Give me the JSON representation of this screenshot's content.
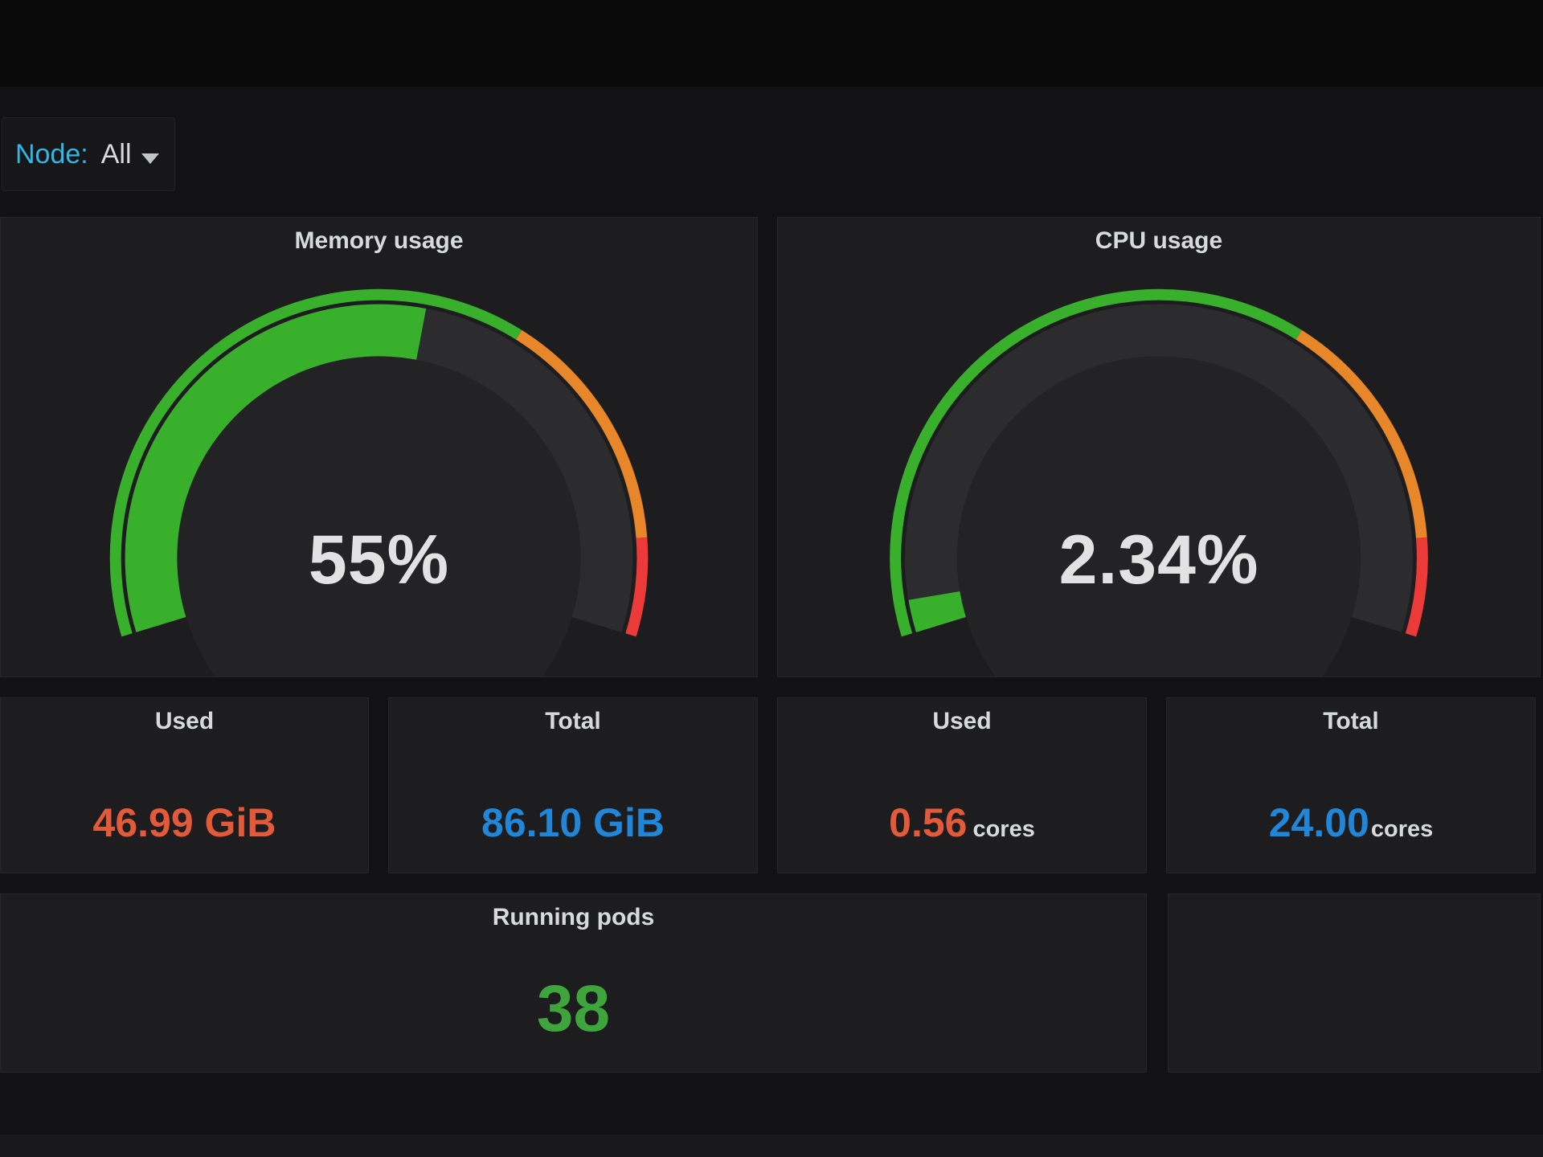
{
  "variable_selector": {
    "label": "Node:",
    "value": "All"
  },
  "panels": {
    "memory_gauge": {
      "title": "Memory usage",
      "display": "55%",
      "percent": 55,
      "min": 0,
      "max": 100,
      "thresholds_percent": [
        65,
        90
      ]
    },
    "cpu_gauge": {
      "title": "CPU usage",
      "display": "2.34%",
      "percent": 2.34,
      "min": 0,
      "max": 100,
      "thresholds_percent": [
        65,
        90
      ]
    },
    "memory_used": {
      "title": "Used",
      "display": "46.99 GiB"
    },
    "memory_total": {
      "title": "Total",
      "display": "86.10 GiB"
    },
    "cpu_used": {
      "title": "Used",
      "display": "0.56",
      "suffix": "cores"
    },
    "cpu_total": {
      "title": "Total",
      "display": "24.00",
      "suffix": "cores"
    },
    "running_pods": {
      "title": "Running pods",
      "display": "38"
    }
  },
  "colors": {
    "variable_label": "#33b5e5",
    "title": "#d8d9da",
    "gauge_text": "#e2e2e3",
    "gauge_green": "#39b02c",
    "gauge_orange": "#e8862a",
    "gauge_red": "#eb3a38",
    "gauge_track": "#2c2c2e",
    "gauge_disc": "#232325",
    "used_value": "#e35a3a",
    "total_value": "#2186d7",
    "pods_value": "#3ea53d"
  },
  "chart_data": [
    {
      "type": "gauge",
      "title": "Memory usage",
      "value_percent": 55,
      "display": "55%",
      "min": 0,
      "max": 100,
      "segments": [
        {
          "to": 65,
          "color": "green"
        },
        {
          "to": 90,
          "color": "orange"
        },
        {
          "to": 100,
          "color": "red"
        }
      ]
    },
    {
      "type": "gauge",
      "title": "CPU usage",
      "value_percent": 2.34,
      "display": "2.34%",
      "min": 0,
      "max": 100,
      "segments": [
        {
          "to": 65,
          "color": "green"
        },
        {
          "to": 90,
          "color": "orange"
        },
        {
          "to": 100,
          "color": "red"
        }
      ]
    },
    {
      "type": "stat",
      "title": "Used",
      "value": 46.99,
      "unit": "GiB",
      "display": "46.99 GiB",
      "group": "Memory"
    },
    {
      "type": "stat",
      "title": "Total",
      "value": 86.1,
      "unit": "GiB",
      "display": "86.10 GiB",
      "group": "Memory"
    },
    {
      "type": "stat",
      "title": "Used",
      "value": 0.56,
      "unit": "cores",
      "display": "0.56 cores",
      "group": "CPU"
    },
    {
      "type": "stat",
      "title": "Total",
      "value": 24.0,
      "unit": "cores",
      "display": "24.00 cores",
      "group": "CPU"
    },
    {
      "type": "stat",
      "title": "Running pods",
      "value": 38,
      "display": "38"
    }
  ]
}
